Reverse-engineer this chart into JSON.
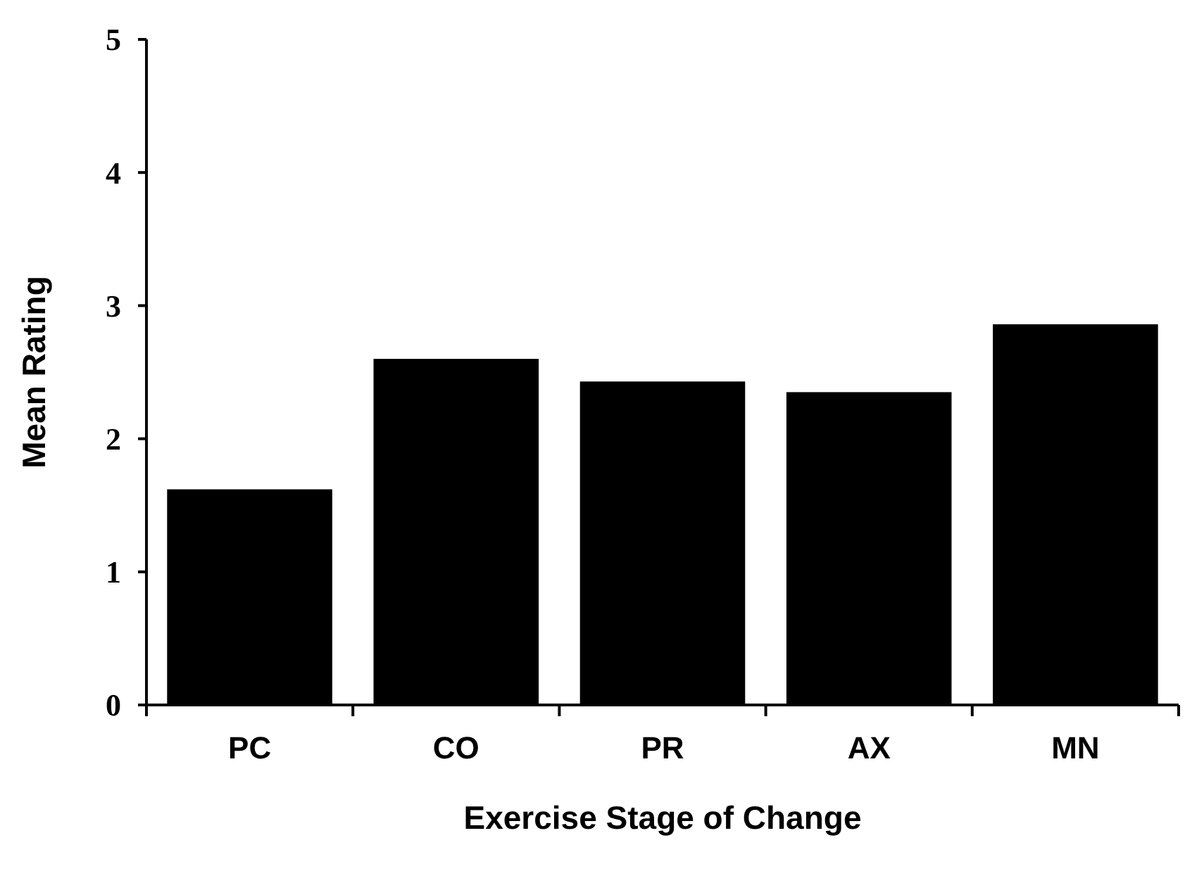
{
  "chart_data": {
    "type": "bar",
    "xlabel": "Exercise Stage of Change",
    "ylabel": "Mean Rating",
    "categories": [
      "PC",
      "CO",
      "PR",
      "AX",
      "MN"
    ],
    "values": [
      1.62,
      2.6,
      2.43,
      2.35,
      2.86
    ],
    "color": "#000000",
    "ylim": [
      0,
      5
    ],
    "yticks": [
      0,
      1,
      2,
      3,
      4,
      5
    ],
    "grid": false
  }
}
